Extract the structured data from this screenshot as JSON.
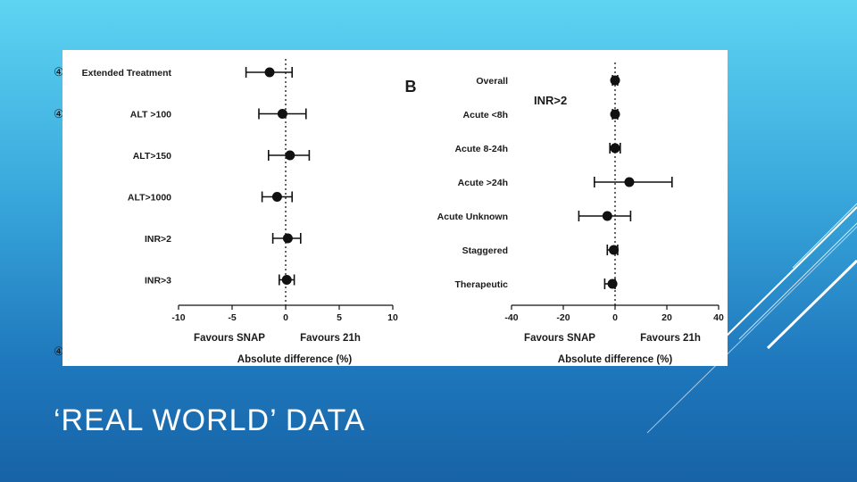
{
  "slide": {
    "title": "‘REAL WORLD’ DATA",
    "bullet_symbol": "④",
    "colors": {
      "accent_line": "#ffffff",
      "marker": "#111111"
    }
  },
  "chart_data": [
    {
      "type": "scatter",
      "subtype": "forest-plot",
      "categories": [
        "Extended Treatment",
        "ALT >100",
        "ALT>150",
        "ALT>1000",
        "INR>2",
        "INR>3"
      ],
      "series": [
        {
          "estimate": [
            -1.5,
            -0.3,
            0.4,
            -0.8,
            0.2,
            0.1
          ],
          "ci_low": [
            -3.7,
            -2.5,
            -1.6,
            -2.2,
            -1.2,
            -0.6
          ],
          "ci_high": [
            0.6,
            1.9,
            2.2,
            0.6,
            1.4,
            0.8
          ]
        }
      ],
      "xlim": [
        -10,
        10
      ],
      "xticks": [
        "-10",
        "-5",
        "0",
        "5",
        "10"
      ],
      "reference_line": 0,
      "favours_left": "Favours SNAP",
      "favours_right": "Favours 21h",
      "xlabel": "Absolute difference (%)"
    },
    {
      "type": "scatter",
      "subtype": "forest-plot",
      "panel_label": "B",
      "subtitle": "INR>2",
      "categories": [
        "Overall",
        "Acute <8h",
        "Acute 8-24h",
        "Acute >24h",
        "Acute Unknown",
        "Staggered",
        "Therapeutic"
      ],
      "series": [
        {
          "estimate": [
            0,
            0,
            0,
            5.5,
            -3,
            -0.5,
            -1
          ],
          "ci_low": [
            -1,
            -1,
            -2,
            -8,
            -14,
            -3,
            -4
          ],
          "ci_high": [
            1,
            1,
            2,
            22,
            6,
            1,
            0
          ]
        }
      ],
      "xlim": [
        -40,
        40
      ],
      "xticks": [
        "-40",
        "-20",
        "0",
        "20",
        "40"
      ],
      "reference_line": 0,
      "favours_left": "Favours SNAP",
      "favours_right": "Favours 21h",
      "xlabel": "Absolute difference (%)"
    }
  ]
}
